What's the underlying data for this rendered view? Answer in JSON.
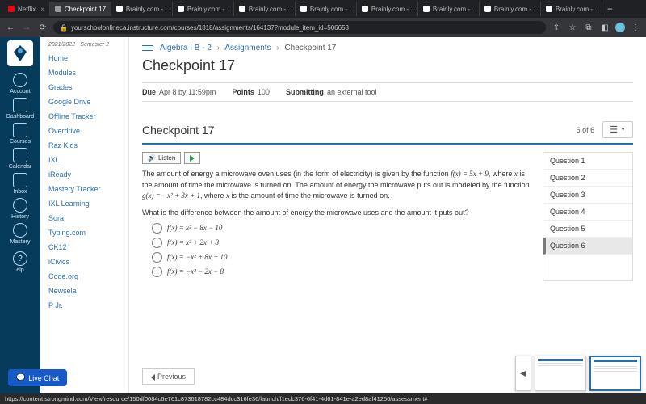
{
  "browser": {
    "tabs": [
      {
        "label": "Netflix",
        "icon": "#e50914"
      },
      {
        "label": "Checkpoint 17",
        "icon": "#9b9b9b",
        "active": true
      },
      {
        "label": "Brainly.com - …",
        "icon": "#ffffff"
      },
      {
        "label": "Brainly.com - …",
        "icon": "#ffffff"
      },
      {
        "label": "Brainly.com - …",
        "icon": "#ffffff"
      },
      {
        "label": "Brainly.com - …",
        "icon": "#ffffff"
      },
      {
        "label": "Brainly.com - …",
        "icon": "#ffffff"
      },
      {
        "label": "Brainly.com - …",
        "icon": "#ffffff"
      },
      {
        "label": "Brainly.com - …",
        "icon": "#ffffff"
      },
      {
        "label": "Brainly.com - …",
        "icon": "#ffffff"
      }
    ],
    "url": "yourschoolonlineca.instructure.com/courses/1818/assignments/164137?module_item_id=506653"
  },
  "rail": {
    "items": [
      {
        "label": "Account",
        "shape": "round"
      },
      {
        "label": "Dashboard",
        "shape": "sq"
      },
      {
        "label": "Courses",
        "shape": "sq"
      },
      {
        "label": "Calendar",
        "shape": "sq"
      },
      {
        "label": "Inbox",
        "shape": "sq"
      },
      {
        "label": "History",
        "shape": "round"
      },
      {
        "label": "Mastery",
        "shape": "round"
      }
    ],
    "help": "elp"
  },
  "courseNav": {
    "term": "2021/2022 - Semester 2",
    "links": [
      "Home",
      "Modules",
      "Grades",
      "Google Drive",
      "Offline Tracker",
      "Overdrive",
      "Raz Kids",
      "IXL",
      "iReady",
      "Mastery Tracker",
      "IXL Learning",
      "Sora",
      "Typing.com",
      "CK12",
      "iCivics",
      "Code.org",
      "Newsela",
      "P Jr."
    ]
  },
  "crumbs": {
    "course": "Algebra I B - 2",
    "section": "Assignments",
    "page": "Checkpoint 17"
  },
  "page": {
    "title": "Checkpoint 17",
    "dueLabel": "Due",
    "due": "Apr 8 by 11:59pm",
    "pointsLabel": "Points",
    "points": "100",
    "submitLabel": "Submitting",
    "submit": "an external tool"
  },
  "assess": {
    "title": "Checkpoint 17",
    "progress": "6 of 6",
    "listen": "Listen",
    "body": "The amount of energy a microwave oven uses (in the form of electricity) is given by the function f(x) = 5x + 9, where x is the amount of time the microwave is turned on. The amount of energy the microwave puts out is modeled by the function g(x) = −x² + 3x + 1, where x is the amount of time the microwave is turned on.",
    "prompt": "What is the difference between the amount of energy the microwave uses and the amount it puts out?",
    "options": [
      "f(x) = x² − 8x − 10",
      "f(x) = x² + 2x + 8",
      "f(x) = −x² + 8x + 10",
      "f(x) = −x² − 2x − 8"
    ],
    "qnav": [
      "Question 1",
      "Question 2",
      "Question 3",
      "Question 4",
      "Question 5",
      "Question 6"
    ],
    "activeQ": 5
  },
  "prev": "Previous",
  "liveChat": "Live Chat",
  "status": "https://content.strongmind.com/View/resource/150df0084c6e761c873618782cc484dcc316fe36/launch/f1edc376-6f41-4d61-841e-a2ed8af41256/assessment#",
  "colors": {
    "railBg": "#073b5c",
    "accent": "#2a6fa8",
    "link": "#2a6fa8"
  }
}
